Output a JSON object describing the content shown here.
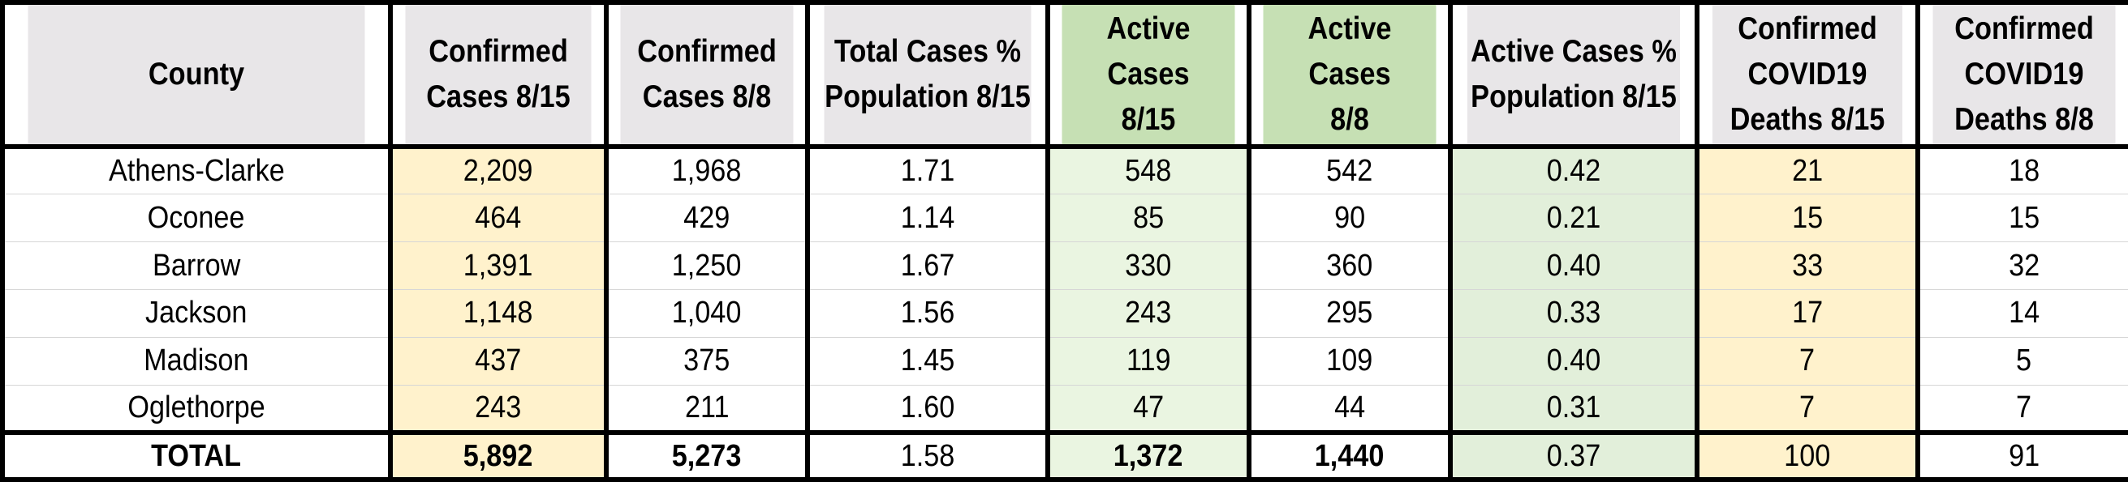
{
  "colors": {
    "header_gray": "#e8e6e8",
    "header_green": "#c6e0b4",
    "confirmed_highlight": "#fff2cc",
    "active_highlight": "#eaf5e1",
    "active_pct_highlight": "#e2efda",
    "deaths_highlight": "#fff2cc",
    "border": "#000000"
  },
  "table": {
    "headers": [
      {
        "line1": "County",
        "line2": "",
        "line3": ""
      },
      {
        "line1": "Confirmed",
        "line2": "Cases 8/15",
        "line3": ""
      },
      {
        "line1": "Confirmed",
        "line2": "Cases 8/8",
        "line3": ""
      },
      {
        "line1": "Total Cases %",
        "line2": "Population 8/15",
        "line3": ""
      },
      {
        "line1": "Active Cases",
        "line2": "8/15",
        "line3": ""
      },
      {
        "line1": "Active Cases",
        "line2": "8/8",
        "line3": ""
      },
      {
        "line1": "Active Cases %",
        "line2": "Population 8/15",
        "line3": ""
      },
      {
        "line1": "Confirmed",
        "line2": "COVID19",
        "line3": "Deaths 8/15"
      },
      {
        "line1": "Confirmed",
        "line2": "COVID19",
        "line3": "Deaths 8/8"
      }
    ],
    "rows": [
      [
        "Athens-Clarke",
        "2,209",
        "1,968",
        "1.71",
        "548",
        "542",
        "0.42",
        "21",
        "18"
      ],
      [
        "Oconee",
        "464",
        "429",
        "1.14",
        "85",
        "90",
        "0.21",
        "15",
        "15"
      ],
      [
        "Barrow",
        "1,391",
        "1,250",
        "1.67",
        "330",
        "360",
        "0.40",
        "33",
        "32"
      ],
      [
        "Jackson",
        "1,148",
        "1,040",
        "1.56",
        "243",
        "295",
        "0.33",
        "17",
        "14"
      ],
      [
        "Madison",
        "437",
        "375",
        "1.45",
        "119",
        "109",
        "0.40",
        "7",
        "5"
      ],
      [
        "Oglethorpe",
        "243",
        "211",
        "1.60",
        "47",
        "44",
        "0.31",
        "7",
        "7"
      ]
    ],
    "total": [
      "TOTAL",
      "5,892",
      "5,273",
      "1.58",
      "1,372",
      "1,440",
      "0.37",
      "100",
      "91"
    ]
  }
}
